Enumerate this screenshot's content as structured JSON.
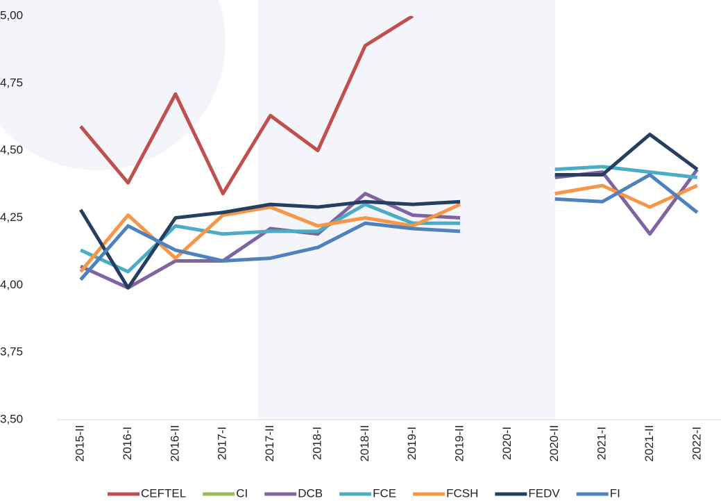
{
  "chart_data": {
    "type": "line",
    "categories": [
      "2015-II",
      "2016-I",
      "2016-II",
      "2017-I",
      "2017-II",
      "2018-I",
      "2018-II",
      "2019-I",
      "2019-II",
      "2020-I",
      "2020-II",
      "2021-I",
      "2021-II",
      "2022-I"
    ],
    "ylim": [
      3.5,
      5.0
    ],
    "yticks": [
      {
        "value": 3.5,
        "label": "3,50"
      },
      {
        "value": 3.75,
        "label": "3,75"
      },
      {
        "value": 4.0,
        "label": "4,00"
      },
      {
        "value": 4.25,
        "label": "4,25"
      },
      {
        "value": 4.5,
        "label": "4,50"
      },
      {
        "value": 4.75,
        "label": "4,75"
      },
      {
        "value": 5.0,
        "label": "5,00"
      }
    ],
    "grid": false,
    "legend": "bottom",
    "series": [
      {
        "name": "CEFTEL",
        "color": "#c0504d",
        "values": [
          4.59,
          4.38,
          4.71,
          4.34,
          4.63,
          4.5,
          4.89,
          5.0,
          null,
          null,
          null,
          null,
          null,
          null
        ]
      },
      {
        "name": "CI",
        "color": "#9bbb59",
        "values": [
          null,
          null,
          null,
          null,
          null,
          null,
          null,
          null,
          null,
          null,
          null,
          null,
          null,
          null
        ]
      },
      {
        "name": "DCB",
        "color": "#8064a2",
        "values": [
          4.07,
          3.99,
          4.09,
          4.09,
          4.21,
          4.19,
          4.34,
          4.26,
          4.25,
          null,
          4.4,
          4.42,
          4.19,
          4.43
        ]
      },
      {
        "name": "FCE",
        "color": "#4bacc6",
        "values": [
          4.13,
          4.05,
          4.22,
          4.19,
          4.2,
          4.2,
          4.3,
          4.23,
          4.23,
          null,
          4.43,
          4.44,
          4.42,
          4.4
        ]
      },
      {
        "name": "FCSH",
        "color": "#f79646",
        "values": [
          4.05,
          4.26,
          4.1,
          4.26,
          4.29,
          4.22,
          4.25,
          4.22,
          4.3,
          null,
          4.34,
          4.37,
          4.29,
          4.37
        ]
      },
      {
        "name": "FEDV",
        "color": "#243f60",
        "values": [
          4.28,
          3.99,
          4.25,
          4.27,
          4.3,
          4.29,
          4.31,
          4.3,
          4.31,
          null,
          4.41,
          4.41,
          4.56,
          4.43
        ]
      },
      {
        "name": "FI",
        "color": "#4f81bd",
        "values": [
          4.02,
          4.22,
          4.13,
          4.09,
          4.1,
          4.14,
          4.23,
          4.21,
          4.2,
          null,
          4.32,
          4.31,
          4.41,
          4.27
        ]
      }
    ]
  }
}
